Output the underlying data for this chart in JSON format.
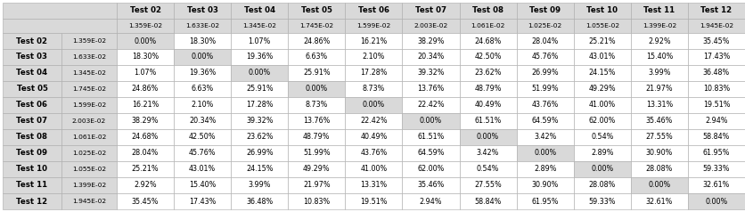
{
  "row_labels": [
    "Test 02",
    "Test 03",
    "Test 04",
    "Test 05",
    "Test 06",
    "Test 07",
    "Test 08",
    "Test 09",
    "Test 10",
    "Test 11",
    "Test 12"
  ],
  "row_sublabels": [
    "1.359E-02",
    "1.633E-02",
    "1.345E-02",
    "1.745E-02",
    "1.599E-02",
    "2.003E-02",
    "1.061E-02",
    "1.025E-02",
    "1.055E-02",
    "1.399E-02",
    "1.945E-02"
  ],
  "col_labels": [
    "Test 02",
    "Test 03",
    "Test 04",
    "Test 05",
    "Test 06",
    "Test 07",
    "Test 08",
    "Test 09",
    "Test 10",
    "Test 11",
    "Test 12"
  ],
  "col_sublabels": [
    "1.359E-02",
    "1.633E-02",
    "1.345E-02",
    "1.745E-02",
    "1.599E-02",
    "2.003E-02",
    "1.061E-02",
    "1.025E-02",
    "1.055E-02",
    "1.399E-02",
    "1.945E-02"
  ],
  "data": [
    [
      "0.00%",
      "18.30%",
      "1.07%",
      "24.86%",
      "16.21%",
      "38.29%",
      "24.68%",
      "28.04%",
      "25.21%",
      "2.92%",
      "35.45%"
    ],
    [
      "18.30%",
      "0.00%",
      "19.36%",
      "6.63%",
      "2.10%",
      "20.34%",
      "42.50%",
      "45.76%",
      "43.01%",
      "15.40%",
      "17.43%"
    ],
    [
      "1.07%",
      "19.36%",
      "0.00%",
      "25.91%",
      "17.28%",
      "39.32%",
      "23.62%",
      "26.99%",
      "24.15%",
      "3.99%",
      "36.48%"
    ],
    [
      "24.86%",
      "6.63%",
      "25.91%",
      "0.00%",
      "8.73%",
      "13.76%",
      "48.79%",
      "51.99%",
      "49.29%",
      "21.97%",
      "10.83%"
    ],
    [
      "16.21%",
      "2.10%",
      "17.28%",
      "8.73%",
      "0.00%",
      "22.42%",
      "40.49%",
      "43.76%",
      "41.00%",
      "13.31%",
      "19.51%"
    ],
    [
      "38.29%",
      "20.34%",
      "39.32%",
      "13.76%",
      "22.42%",
      "0.00%",
      "61.51%",
      "64.59%",
      "62.00%",
      "35.46%",
      "2.94%"
    ],
    [
      "24.68%",
      "42.50%",
      "23.62%",
      "48.79%",
      "40.49%",
      "61.51%",
      "0.00%",
      "3.42%",
      "0.54%",
      "27.55%",
      "58.84%"
    ],
    [
      "28.04%",
      "45.76%",
      "26.99%",
      "51.99%",
      "43.76%",
      "64.59%",
      "3.42%",
      "0.00%",
      "2.89%",
      "30.90%",
      "61.95%"
    ],
    [
      "25.21%",
      "43.01%",
      "24.15%",
      "49.29%",
      "41.00%",
      "62.00%",
      "0.54%",
      "2.89%",
      "0.00%",
      "28.08%",
      "59.33%"
    ],
    [
      "2.92%",
      "15.40%",
      "3.99%",
      "21.97%",
      "13.31%",
      "35.46%",
      "27.55%",
      "30.90%",
      "28.08%",
      "0.00%",
      "32.61%"
    ],
    [
      "35.45%",
      "17.43%",
      "36.48%",
      "10.83%",
      "19.51%",
      "2.94%",
      "58.84%",
      "61.95%",
      "59.33%",
      "32.61%",
      "0.00%"
    ]
  ],
  "bg_header": "#d9d9d9",
  "bg_cell_normal": "#ffffff",
  "bg_cell_zero": "#d9d9d9",
  "edge_color": "#aaaaaa",
  "text_color": "#000000",
  "font_size": 5.8,
  "header_font_size": 6.2,
  "sub_font_size": 5.4,
  "fig_width": 8.36,
  "fig_height": 2.38
}
